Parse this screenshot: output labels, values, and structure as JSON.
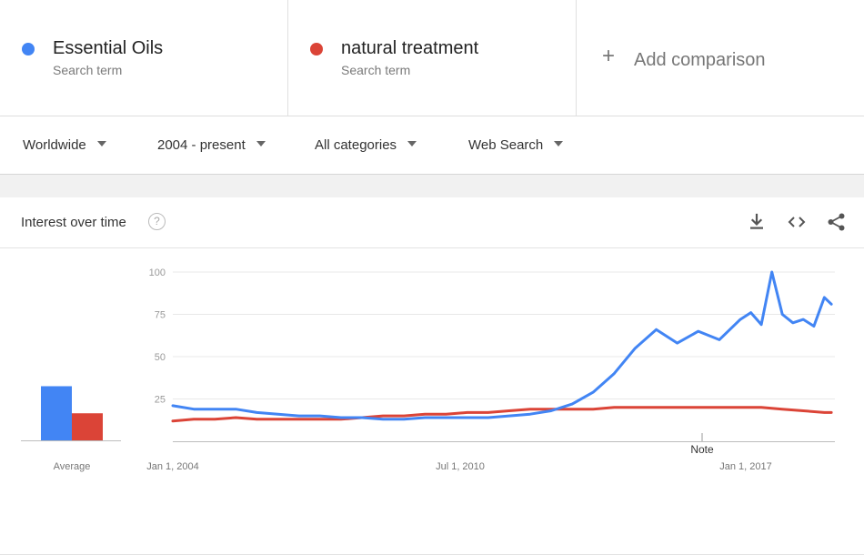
{
  "terms": [
    {
      "name": "Essential Oils",
      "subtitle": "Search term",
      "color": "#4285f4"
    },
    {
      "name": "natural treatment",
      "subtitle": "Search term",
      "color": "#db4437"
    }
  ],
  "add_comparison": {
    "icon": "plus-icon",
    "label": "Add comparison"
  },
  "filters": {
    "region": "Worldwide",
    "time_range": "2004 - present",
    "category": "All categories",
    "search_type": "Web Search"
  },
  "card": {
    "title": "Interest over time",
    "help_icon": "?",
    "tools": [
      "download-icon",
      "embed-code-icon",
      "share-icon"
    ]
  },
  "chart_data": {
    "type": "line",
    "x_labels": [
      "Jan 1, 2004",
      "Jul 1, 2010",
      "Jan 1, 2017"
    ],
    "y_ticks": [
      25,
      50,
      75,
      100
    ],
    "ylim": [
      0,
      100
    ],
    "annotation": "Note",
    "average_label": "Average",
    "averages": [
      {
        "series": "Essential Oils",
        "value": 32
      },
      {
        "series": "natural treatment",
        "value": 16
      }
    ],
    "series": [
      {
        "name": "Essential Oils",
        "color": "#4285f4",
        "points": [
          [
            "2004-01",
            21
          ],
          [
            "2004-07",
            19
          ],
          [
            "2005-01",
            19
          ],
          [
            "2005-07",
            19
          ],
          [
            "2006-01",
            17
          ],
          [
            "2006-07",
            16
          ],
          [
            "2007-01",
            15
          ],
          [
            "2007-07",
            15
          ],
          [
            "2008-01",
            14
          ],
          [
            "2008-07",
            14
          ],
          [
            "2009-01",
            13
          ],
          [
            "2009-07",
            13
          ],
          [
            "2010-01",
            14
          ],
          [
            "2010-07",
            14
          ],
          [
            "2011-01",
            14
          ],
          [
            "2011-07",
            14
          ],
          [
            "2012-01",
            15
          ],
          [
            "2012-07",
            16
          ],
          [
            "2013-01",
            18
          ],
          [
            "2013-07",
            22
          ],
          [
            "2014-01",
            29
          ],
          [
            "2014-07",
            40
          ],
          [
            "2015-01",
            55
          ],
          [
            "2015-07",
            66
          ],
          [
            "2016-01",
            58
          ],
          [
            "2016-07",
            65
          ],
          [
            "2017-01",
            60
          ],
          [
            "2017-07",
            72
          ],
          [
            "2017-10",
            76
          ],
          [
            "2018-01",
            69
          ],
          [
            "2018-04",
            100
          ],
          [
            "2018-07",
            75
          ],
          [
            "2018-10",
            70
          ],
          [
            "2019-01",
            72
          ],
          [
            "2019-04",
            68
          ],
          [
            "2019-07",
            85
          ],
          [
            "2019-09",
            81
          ]
        ]
      },
      {
        "name": "natural treatment",
        "color": "#db4437",
        "points": [
          [
            "2004-01",
            12
          ],
          [
            "2004-07",
            13
          ],
          [
            "2005-01",
            13
          ],
          [
            "2005-07",
            14
          ],
          [
            "2006-01",
            13
          ],
          [
            "2006-07",
            13
          ],
          [
            "2007-01",
            13
          ],
          [
            "2007-07",
            13
          ],
          [
            "2008-01",
            13
          ],
          [
            "2008-07",
            14
          ],
          [
            "2009-01",
            15
          ],
          [
            "2009-07",
            15
          ],
          [
            "2010-01",
            16
          ],
          [
            "2010-07",
            16
          ],
          [
            "2011-01",
            17
          ],
          [
            "2011-07",
            17
          ],
          [
            "2012-01",
            18
          ],
          [
            "2012-07",
            19
          ],
          [
            "2013-01",
            19
          ],
          [
            "2013-07",
            19
          ],
          [
            "2014-01",
            19
          ],
          [
            "2014-07",
            20
          ],
          [
            "2015-01",
            20
          ],
          [
            "2015-07",
            20
          ],
          [
            "2016-01",
            20
          ],
          [
            "2016-07",
            20
          ],
          [
            "2017-01",
            20
          ],
          [
            "2017-07",
            20
          ],
          [
            "2018-01",
            20
          ],
          [
            "2018-07",
            19
          ],
          [
            "2019-01",
            18
          ],
          [
            "2019-07",
            17
          ],
          [
            "2019-09",
            17
          ]
        ]
      }
    ]
  }
}
